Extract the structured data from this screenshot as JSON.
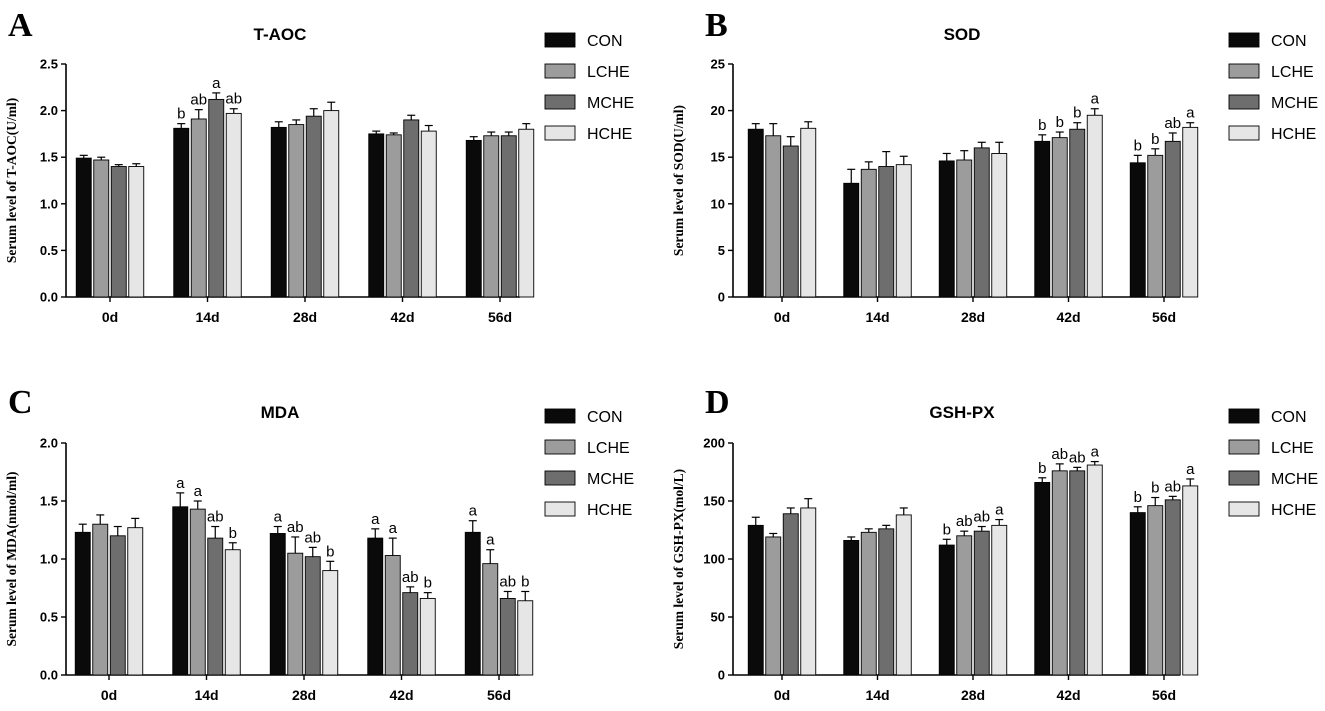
{
  "colors": {
    "CON": "#0a0a0a",
    "LCHE": "#9c9c9c",
    "MCHE": "#6e6e6e",
    "HCHE": "#e6e6e6",
    "axis": "#000000"
  },
  "chart_data": [
    {
      "panel": "A",
      "type": "bar",
      "title": "T-AOC",
      "ylabel": "Serum level of  T-AOC(U/ml)",
      "xlabel": "",
      "categories": [
        "0d",
        "14d",
        "28d",
        "42d",
        "56d"
      ],
      "ylim": [
        0,
        2.5
      ],
      "yticks": [
        "0.0",
        "0.5",
        "1.0",
        "1.5",
        "2.0",
        "2.5"
      ],
      "grid": false,
      "legend": "right",
      "series": [
        {
          "name": "CON",
          "values": [
            1.49,
            1.81,
            1.82,
            1.75,
            1.68
          ],
          "errors": [
            0.03,
            0.05,
            0.06,
            0.03,
            0.04
          ],
          "labels": [
            "",
            "b",
            "",
            "",
            ""
          ]
        },
        {
          "name": "LCHE",
          "values": [
            1.47,
            1.91,
            1.85,
            1.74,
            1.73
          ],
          "errors": [
            0.03,
            0.1,
            0.05,
            0.02,
            0.04
          ],
          "labels": [
            "",
            "ab",
            "",
            "",
            ""
          ]
        },
        {
          "name": "MCHE",
          "values": [
            1.4,
            2.12,
            1.94,
            1.9,
            1.73
          ],
          "errors": [
            0.02,
            0.07,
            0.08,
            0.05,
            0.04
          ],
          "labels": [
            "",
            "a",
            "",
            "",
            ""
          ]
        },
        {
          "name": "HCHE",
          "values": [
            1.4,
            1.97,
            2.0,
            1.78,
            1.8
          ],
          "errors": [
            0.03,
            0.05,
            0.09,
            0.06,
            0.06
          ],
          "labels": [
            "",
            "ab",
            "",
            "",
            ""
          ]
        }
      ]
    },
    {
      "panel": "B",
      "type": "bar",
      "title": "SOD",
      "ylabel": "Serum level of  SOD(U/ml)",
      "xlabel": "",
      "categories": [
        "0d",
        "14d",
        "28d",
        "42d",
        "56d"
      ],
      "ylim": [
        0,
        25
      ],
      "yticks": [
        "0",
        "5",
        "10",
        "15",
        "20",
        "25"
      ],
      "grid": false,
      "legend": "right",
      "series": [
        {
          "name": "CON",
          "values": [
            18.0,
            12.2,
            14.6,
            16.7,
            14.4
          ],
          "errors": [
            0.6,
            1.5,
            0.8,
            0.7,
            0.8
          ],
          "labels": [
            "",
            "",
            "",
            "b",
            "b"
          ]
        },
        {
          "name": "LCHE",
          "values": [
            17.3,
            13.7,
            14.7,
            17.1,
            15.2
          ],
          "errors": [
            1.3,
            0.8,
            1.0,
            0.6,
            0.7
          ],
          "labels": [
            "",
            "",
            "",
            "b",
            "b"
          ]
        },
        {
          "name": "MCHE",
          "values": [
            16.2,
            14.0,
            16.0,
            18.0,
            16.7
          ],
          "errors": [
            1.0,
            1.6,
            0.6,
            0.7,
            0.9
          ],
          "labels": [
            "",
            "",
            "",
            "b",
            "ab"
          ]
        },
        {
          "name": "HCHE",
          "values": [
            18.1,
            14.2,
            15.4,
            19.5,
            18.2
          ],
          "errors": [
            0.7,
            0.9,
            1.2,
            0.7,
            0.5
          ],
          "labels": [
            "",
            "",
            "",
            "a",
            "a"
          ]
        }
      ]
    },
    {
      "panel": "C",
      "type": "bar",
      "title": "MDA",
      "ylabel": "Serum level of  MDA(nmol/ml)",
      "xlabel": "",
      "categories": [
        "0d",
        "14d",
        "28d",
        "42d",
        "56d"
      ],
      "ylim": [
        0,
        2.0
      ],
      "yticks": [
        "0.0",
        "0.5",
        "1.0",
        "1.5",
        "2.0"
      ],
      "grid": false,
      "legend": "right",
      "series": [
        {
          "name": "CON",
          "values": [
            1.23,
            1.45,
            1.22,
            1.18,
            1.23
          ],
          "errors": [
            0.07,
            0.12,
            0.06,
            0.08,
            0.1
          ],
          "labels": [
            "",
            "a",
            "a",
            "a",
            "a"
          ]
        },
        {
          "name": "LCHE",
          "values": [
            1.3,
            1.43,
            1.05,
            1.03,
            0.96
          ],
          "errors": [
            0.08,
            0.07,
            0.14,
            0.15,
            0.12
          ],
          "labels": [
            "",
            "a",
            "ab",
            "a",
            "a"
          ]
        },
        {
          "name": "MCHE",
          "values": [
            1.2,
            1.18,
            1.02,
            0.71,
            0.66
          ],
          "errors": [
            0.08,
            0.1,
            0.08,
            0.05,
            0.06
          ],
          "labels": [
            "",
            "ab",
            "ab",
            "ab",
            "ab"
          ]
        },
        {
          "name": "HCHE",
          "values": [
            1.27,
            1.08,
            0.9,
            0.66,
            0.64
          ],
          "errors": [
            0.08,
            0.06,
            0.08,
            0.05,
            0.08
          ],
          "labels": [
            "",
            "b",
            "b",
            "b",
            "b"
          ]
        }
      ]
    },
    {
      "panel": "D",
      "type": "bar",
      "title": "GSH-PX",
      "ylabel": "Serum level of  GSH-PX(mol/L)",
      "xlabel": "",
      "categories": [
        "0d",
        "14d",
        "28d",
        "42d",
        "56d"
      ],
      "ylim": [
        0,
        200
      ],
      "yticks": [
        "0",
        "50",
        "100",
        "150",
        "200"
      ],
      "grid": false,
      "legend": "right",
      "series": [
        {
          "name": "CON",
          "values": [
            129,
            116,
            112,
            166,
            140
          ],
          "errors": [
            7,
            3,
            5,
            4,
            5
          ],
          "labels": [
            "",
            "",
            "b",
            "b",
            "b"
          ]
        },
        {
          "name": "LCHE",
          "values": [
            119,
            123,
            120,
            176,
            146
          ],
          "errors": [
            3,
            3,
            4,
            6,
            7
          ],
          "labels": [
            "",
            "",
            "ab",
            "ab",
            "b"
          ]
        },
        {
          "name": "MCHE",
          "values": [
            139,
            126,
            124,
            176,
            151
          ],
          "errors": [
            5,
            3,
            4,
            3,
            3
          ],
          "labels": [
            "",
            "",
            "ab",
            "ab",
            "ab"
          ]
        },
        {
          "name": "HCHE",
          "values": [
            144,
            138,
            129,
            181,
            163
          ],
          "errors": [
            8,
            6,
            5,
            3,
            6
          ],
          "labels": [
            "",
            "",
            "a",
            "a",
            "a"
          ]
        }
      ]
    }
  ]
}
